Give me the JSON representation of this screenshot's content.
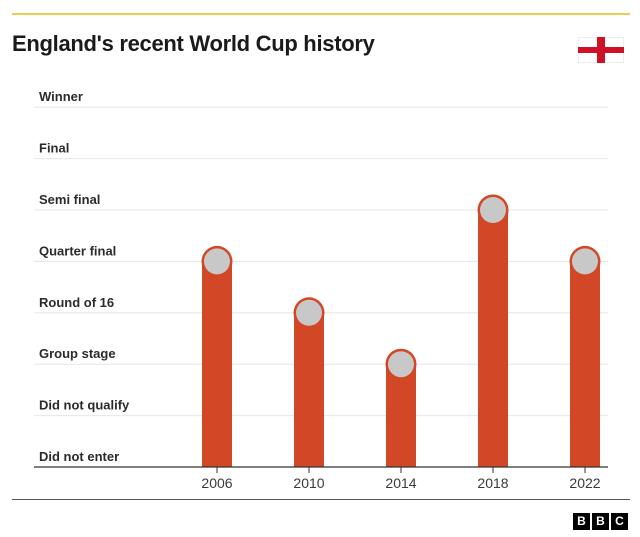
{
  "header": {
    "title": "England's recent World Cup history",
    "accent_color": "#f2c94c",
    "flag_icon": "england-flag-icon"
  },
  "chart_data": {
    "type": "bar",
    "title": "England's recent World Cup history",
    "categories": [
      "2006",
      "2010",
      "2014",
      "2018",
      "2022"
    ],
    "y_levels": [
      "Did not enter",
      "Did not qualify",
      "Group stage",
      "Round of 16",
      "Quarter final",
      "Semi final",
      "Final",
      "Winner"
    ],
    "values": [
      "Quarter final",
      "Round of 16",
      "Group stage",
      "Semi final",
      "Quarter final"
    ],
    "value_index": [
      4,
      3,
      2,
      5,
      4
    ],
    "grid": true,
    "bar_color": "#d24726",
    "marker_color": "#c8c8c8",
    "xlabel": "",
    "ylabel": ""
  },
  "footer": {
    "logo_letters": [
      "B",
      "B",
      "C"
    ]
  }
}
